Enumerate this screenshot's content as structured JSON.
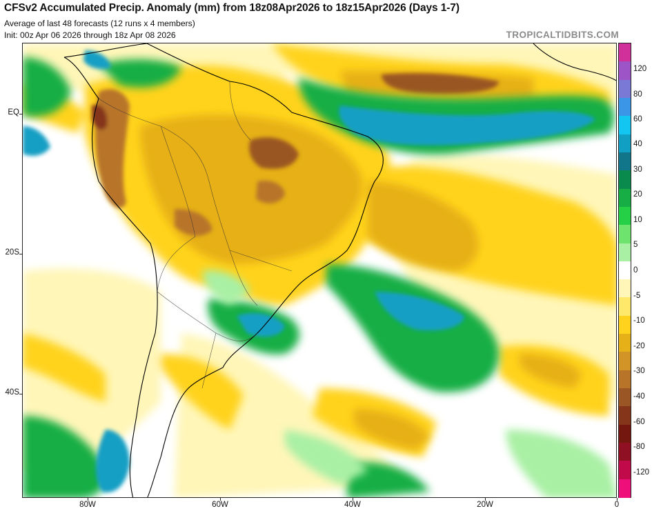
{
  "header": {
    "title": "CFSv2 Accumulated Precip. Anomaly (mm) from 18z08Apr2026 to 18z15Apr2026 (Days 1-7)",
    "subtitle_1": "Average of last 48 forecasts (12 runs x 4 members)",
    "subtitle_2": "Init: 00z Apr 06 2026 through 18z Apr 08 2026",
    "brand": "TROPICALTIDBITS.COM"
  },
  "axes": {
    "y_labels": [
      "EQ",
      "20S",
      "40S"
    ],
    "x_labels": [
      "80W",
      "60W",
      "40W",
      "20W",
      "0"
    ]
  },
  "colorbar": {
    "labels": [
      "120",
      "80",
      "60",
      "40",
      "30",
      "20",
      "10",
      "5",
      "0",
      "-5",
      "-10",
      "-20",
      "-30",
      "-40",
      "-60",
      "-80",
      "-120"
    ],
    "colors": [
      "#d1309b",
      "#9c54c7",
      "#7a79d6",
      "#3b96e8",
      "#13c6f1",
      "#129fc4",
      "#12768b",
      "#0b8a4e",
      "#16ae45",
      "#25d047",
      "#6ee36d",
      "#a9f0a4",
      "#ffffff",
      "#fff6b8",
      "#ffe86a",
      "#ffd31d",
      "#e6b019",
      "#d29426",
      "#b8752a",
      "#9a5624",
      "#85351a",
      "#74170f",
      "#8f0f23",
      "#c00a4a",
      "#ef0f7b"
    ]
  },
  "colors": {
    "wet_strong": "#129fc4",
    "wet": "#16ae45",
    "wet_light": "#a9f0a4",
    "dry_light": "#fff6b8",
    "dry": "#ffd31d",
    "dry_mid": "#d29426",
    "dry_strong": "#9a5624",
    "land_border": "#000000"
  }
}
